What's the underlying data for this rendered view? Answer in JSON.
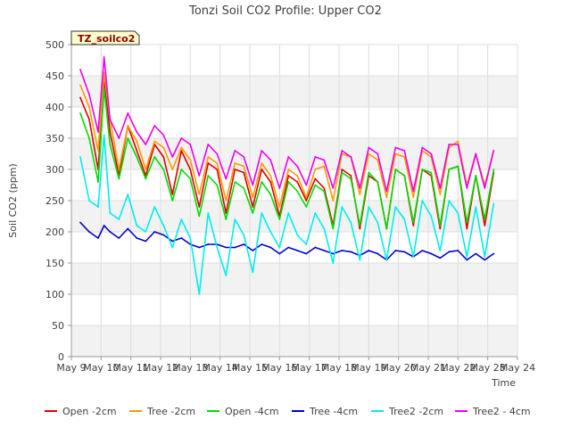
{
  "chart_data": {
    "type": "line",
    "title": "Tonzi Soil CO2 Profile: Upper CO2",
    "xlabel": "Time",
    "ylabel": "Soil CO2 (ppm)",
    "ylim": [
      0,
      500
    ],
    "xlim": [
      9,
      24
    ],
    "yticks": [
      0,
      50,
      100,
      150,
      200,
      250,
      300,
      350,
      400,
      450,
      500
    ],
    "xticks": [
      9,
      10,
      11,
      12,
      13,
      14,
      15,
      16,
      17,
      18,
      19,
      20,
      21,
      22,
      23,
      24
    ],
    "xtick_labels": [
      "May 9",
      "May 10",
      "May 11",
      "May 12",
      "May 13",
      "May 14",
      "May 15",
      "May 16",
      "May 17",
      "May 18",
      "May 19",
      "May 20",
      "May 21",
      "May 22",
      "May 23",
      "May 24"
    ],
    "grid": true,
    "background_bands": true,
    "tag": "TZ_soilco2",
    "legend_position": "bottom",
    "x": [
      9.3,
      9.6,
      9.9,
      10.1,
      10.3,
      10.6,
      10.9,
      11.2,
      11.5,
      11.8,
      12.1,
      12.4,
      12.7,
      13.0,
      13.3,
      13.6,
      13.9,
      14.2,
      14.5,
      14.8,
      15.1,
      15.4,
      15.7,
      16.0,
      16.3,
      16.6,
      16.9,
      17.2,
      17.5,
      17.8,
      18.1,
      18.4,
      18.7,
      19.0,
      19.3,
      19.6,
      19.9,
      20.2,
      20.5,
      20.8,
      21.1,
      21.4,
      21.7,
      22.0,
      22.3,
      22.6,
      22.9,
      23.2
    ],
    "series": [
      {
        "name": "Open -2cm",
        "color": "#dd0000",
        "values": [
          415,
          380,
          300,
          440,
          360,
          290,
          370,
          330,
          290,
          340,
          320,
          260,
          330,
          300,
          240,
          310,
          300,
          230,
          300,
          295,
          240,
          300,
          280,
          225,
          290,
          280,
          250,
          285,
          270,
          210,
          300,
          290,
          205,
          290,
          280,
          205,
          300,
          290,
          210,
          300,
          290,
          205,
          300,
          305,
          205,
          290,
          210,
          295
        ]
      },
      {
        "name": "Tree -2cm",
        "color": "#ff9900",
        "values": [
          435,
          400,
          330,
          455,
          380,
          300,
          370,
          345,
          300,
          345,
          335,
          300,
          335,
          315,
          260,
          320,
          310,
          250,
          310,
          305,
          255,
          310,
          290,
          240,
          300,
          290,
          255,
          300,
          305,
          250,
          325,
          320,
          260,
          325,
          315,
          255,
          325,
          320,
          255,
          330,
          320,
          260,
          335,
          345,
          275,
          325,
          275,
          330
        ]
      },
      {
        "name": "Open -4cm",
        "color": "#00dd00",
        "values": [
          390,
          350,
          280,
          430,
          340,
          285,
          350,
          320,
          285,
          320,
          300,
          250,
          300,
          285,
          225,
          290,
          275,
          220,
          280,
          270,
          230,
          280,
          260,
          220,
          280,
          265,
          240,
          275,
          265,
          205,
          295,
          285,
          210,
          295,
          280,
          205,
          300,
          290,
          215,
          300,
          295,
          210,
          300,
          305,
          215,
          290,
          220,
          300
        ]
      },
      {
        "name": "Tree -4cm",
        "color": "#0000cc",
        "values": [
          215,
          200,
          190,
          210,
          200,
          190,
          205,
          190,
          185,
          200,
          195,
          185,
          190,
          180,
          175,
          180,
          180,
          175,
          175,
          180,
          170,
          180,
          175,
          165,
          175,
          170,
          165,
          175,
          170,
          165,
          170,
          168,
          162,
          170,
          165,
          155,
          170,
          168,
          160,
          170,
          165,
          158,
          168,
          170,
          155,
          165,
          155,
          165
        ]
      },
      {
        "name": "Tree2 -2cm",
        "color": "#00eeee",
        "values": [
          320,
          250,
          240,
          355,
          230,
          220,
          260,
          210,
          200,
          240,
          210,
          175,
          220,
          190,
          100,
          230,
          175,
          130,
          220,
          195,
          135,
          230,
          200,
          175,
          230,
          195,
          180,
          230,
          205,
          150,
          240,
          215,
          155,
          240,
          215,
          155,
          240,
          220,
          160,
          250,
          225,
          170,
          250,
          230,
          160,
          240,
          160,
          245
        ]
      },
      {
        "name": "Tree2 - 4cm",
        "color": "#ee00ee",
        "values": [
          460,
          420,
          360,
          480,
          380,
          350,
          390,
          360,
          340,
          370,
          355,
          320,
          350,
          340,
          290,
          340,
          325,
          285,
          330,
          320,
          275,
          330,
          315,
          270,
          320,
          305,
          275,
          320,
          315,
          270,
          330,
          320,
          270,
          335,
          325,
          265,
          335,
          330,
          265,
          335,
          325,
          270,
          340,
          340,
          270,
          325,
          270,
          330
        ]
      }
    ]
  }
}
